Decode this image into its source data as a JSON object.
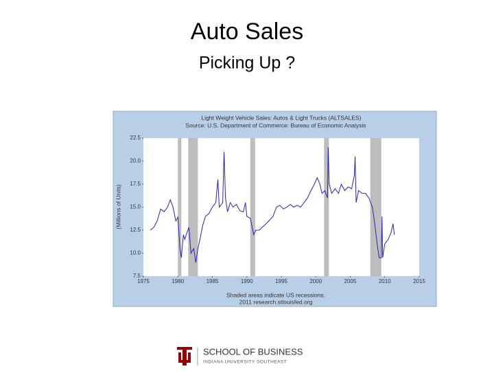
{
  "slide": {
    "title": "Auto Sales",
    "subtitle": "Picking Up ?"
  },
  "chart_data": {
    "type": "line",
    "title": "Light Weight Vehicle Sales: Autos & Light Trucks (ALTSALES)",
    "subtitle": "Source: U.S. Department of Commerce: Bureau of Economic Analysis",
    "y_label": "(Millions of Units)",
    "notes": [
      "Shaded areas indicate US recessions.",
      "2011 research.stlouisfed.org"
    ],
    "xlim": [
      1975,
      2015
    ],
    "xticks": [
      1975,
      1980,
      1985,
      1990,
      1995,
      2000,
      2005,
      2010,
      2015
    ],
    "ylim": [
      7.5,
      22.5
    ],
    "yticks": [
      7.5,
      {
        "value": 10,
        "label": "10.0"
      },
      12.5,
      {
        "value": 15,
        "label": "15.0"
      },
      17.5,
      {
        "value": 20,
        "label": "20.0"
      },
      22.5
    ],
    "recessions": [
      [
        1980.0,
        1980.5
      ],
      [
        1981.5,
        1982.9
      ],
      [
        1990.5,
        1991.2
      ],
      [
        2001.2,
        2001.9
      ],
      [
        2007.9,
        2009.5
      ]
    ],
    "recession_color": "#bdbdbd",
    "series": [
      {
        "name": "ALTSALES",
        "color": "#2323b8",
        "x": [
          1976.0,
          1976.5,
          1977.0,
          1977.5,
          1978.0,
          1978.5,
          1978.9,
          1979.3,
          1979.7,
          1980.0,
          1980.3,
          1980.5,
          1980.8,
          1981.0,
          1981.3,
          1981.6,
          1981.9,
          1982.3,
          1982.6,
          1982.9,
          1983.2,
          1983.6,
          1984.0,
          1984.5,
          1985.0,
          1985.5,
          1985.8,
          1986.0,
          1986.5,
          1986.7,
          1986.9,
          1987.2,
          1987.6,
          1988.0,
          1988.5,
          1989.0,
          1989.5,
          1989.8,
          1990.0,
          1990.5,
          1991.0,
          1991.3,
          1991.8,
          1992.2,
          1992.8,
          1993.3,
          1993.8,
          1994.3,
          1994.8,
          1995.3,
          1995.8,
          1996.3,
          1996.8,
          1997.3,
          1997.8,
          1998.3,
          1998.8,
          1999.3,
          1999.8,
          2000.2,
          2000.6,
          2000.9,
          2001.3,
          2001.7,
          2001.8,
          2001.95,
          2002.3,
          2002.8,
          2003.3,
          2003.7,
          2004.2,
          2004.7,
          2005.2,
          2005.6,
          2005.7,
          2005.85,
          2006.2,
          2006.7,
          2007.2,
          2007.7,
          2008.2,
          2008.5,
          2008.9,
          2009.2,
          2009.5,
          2009.6,
          2009.7,
          2010.0,
          2010.5,
          2010.9,
          2011.2,
          2011.4
        ],
        "values": [
          12.5,
          12.8,
          13.5,
          14.8,
          14.5,
          15.0,
          15.8,
          15.0,
          13.5,
          13.9,
          10.5,
          9.5,
          12.0,
          11.5,
          12.2,
          12.8,
          10.0,
          10.5,
          9.0,
          10.5,
          11.5,
          13.0,
          14.0,
          14.3,
          15.0,
          15.5,
          18.0,
          15.0,
          15.5,
          21.0,
          16.0,
          14.5,
          15.5,
          15.0,
          15.3,
          14.6,
          14.5,
          15.5,
          14.0,
          13.8,
          12.0,
          12.5,
          12.5,
          12.8,
          13.2,
          13.6,
          14.0,
          15.0,
          15.2,
          14.8,
          15.0,
          15.3,
          15.0,
          15.2,
          15.0,
          15.5,
          16.0,
          16.8,
          17.5,
          18.2,
          17.5,
          16.5,
          16.8,
          16.0,
          21.5,
          17.5,
          16.5,
          17.0,
          16.5,
          17.5,
          16.8,
          17.2,
          17.0,
          18.5,
          20.5,
          15.5,
          16.8,
          16.5,
          16.5,
          16.0,
          15.0,
          13.5,
          11.0,
          9.5,
          9.5,
          14.0,
          9.5,
          11.0,
          11.5,
          12.2,
          13.2,
          12.0
        ]
      }
    ]
  },
  "footer": {
    "school": "SCHOOL OF BUSINESS",
    "university": "INDIANA UNIVERSITY SOUTHEAST"
  }
}
